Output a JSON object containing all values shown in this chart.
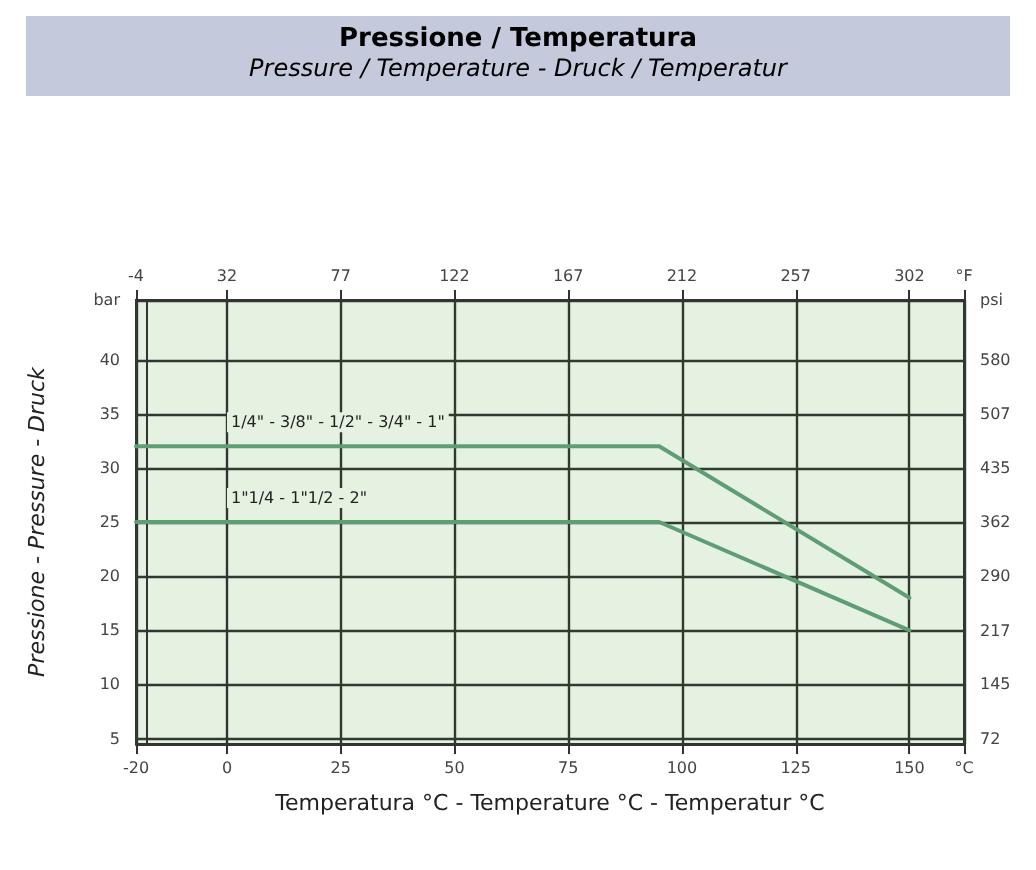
{
  "chart_data": {
    "type": "line",
    "title": "Pressione / Temperatura",
    "subtitle": "Pressure / Temperature - Druck / Temperatur",
    "xlabel": "Temperatura °C - Temperature °C - Temperatur °C",
    "ylabel": "Pressione - Pressure - Druck",
    "xlim": [
      -20,
      162
    ],
    "xticks": [
      -20,
      0,
      25,
      50,
      75,
      100,
      125,
      150,
      {
        "value": 162,
        "label": "°C"
      }
    ],
    "x2lim": [
      -4,
      323.6
    ],
    "x2ticks": [
      -4,
      32,
      77,
      122,
      167,
      212,
      257,
      302,
      {
        "value": 323.6,
        "label": "°F"
      }
    ],
    "ylim": [
      4.5,
      45.5
    ],
    "yticks": [
      5,
      10,
      15,
      20,
      25,
      30,
      35,
      40,
      {
        "value": 45.5,
        "label": "bar"
      }
    ],
    "y2lim": [
      65.3,
      659.9
    ],
    "y2ticks": [
      72,
      145,
      217,
      290,
      362,
      435,
      507,
      580,
      {
        "value": 659.9,
        "label": "psi"
      }
    ],
    "series": [
      {
        "name": "1/4\" - 3/8\" - 1/2\" - 3/4\" - 1\"",
        "color": "#5f9e74",
        "x": [
          -20,
          0,
          95,
          150
        ],
        "values": [
          32,
          32,
          32,
          18
        ]
      },
      {
        "name": "1\"1/4 - 1\"1/2 - 2\"",
        "color": "#5f9e74",
        "x": [
          -20,
          0,
          95,
          150
        ],
        "values": [
          25,
          25,
          25,
          15
        ]
      }
    ],
    "grid": true,
    "legend": false,
    "marker": "none",
    "line_style": "solid"
  }
}
